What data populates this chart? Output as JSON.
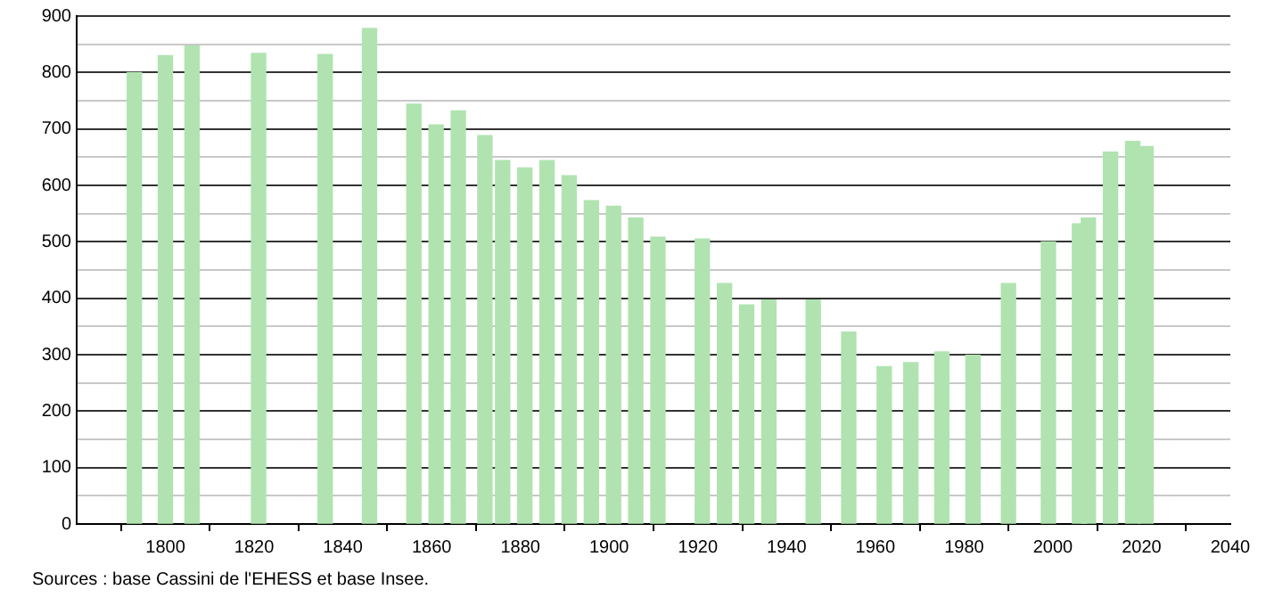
{
  "chart_data": {
    "type": "bar",
    "x": [
      1793,
      1800,
      1806,
      1821,
      1836,
      1846,
      1856,
      1861,
      1866,
      1872,
      1876,
      1881,
      1886,
      1891,
      1896,
      1901,
      1906,
      1911,
      1921,
      1926,
      1931,
      1936,
      1946,
      1954,
      1962,
      1968,
      1975,
      1982,
      1990,
      1999,
      2006,
      2008,
      2013,
      2018,
      2021
    ],
    "values": [
      800,
      830,
      847,
      834,
      832,
      878,
      744,
      707,
      732,
      688,
      644,
      631,
      644,
      617,
      573,
      563,
      542,
      508,
      505,
      426,
      388,
      397,
      397,
      340,
      279,
      286,
      305,
      299,
      426,
      500,
      532,
      542,
      659,
      678,
      669
    ],
    "color": "#b0e3b0",
    "xlim": [
      1780,
      2040
    ],
    "xticks": [
      1800,
      1820,
      1840,
      1860,
      1880,
      1900,
      1920,
      1940,
      1960,
      1980,
      2000,
      2020,
      2040
    ],
    "ylim": [
      0,
      900
    ],
    "yticks": [
      0,
      {
        "value": 50,
        "label": null
      },
      100,
      {
        "value": 150,
        "label": null
      },
      200,
      {
        "value": 250,
        "label": null
      },
      300,
      {
        "value": 350,
        "label": null
      },
      400,
      {
        "value": 450,
        "label": null
      },
      500,
      {
        "value": 550,
        "label": null
      },
      600,
      {
        "value": 650,
        "label": null
      },
      700,
      {
        "value": 750,
        "label": null
      },
      800,
      {
        "value": 850,
        "label": null
      },
      900
    ],
    "grid": "y",
    "legend": false,
    "annotations": [
      "Sources : base Cassini de l'EHESS et base Insee."
    ]
  }
}
